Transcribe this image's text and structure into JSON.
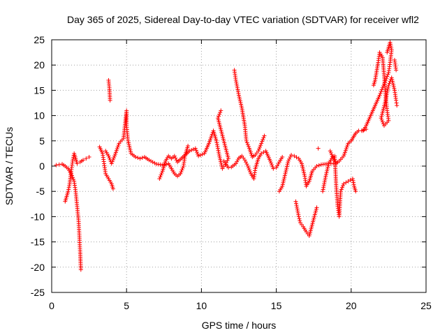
{
  "chart_data": {
    "type": "scatter",
    "title": "Day 365 of 2025, Sidereal Day-to-day VTEC variation (SDTVAR) for receiver wfl2",
    "xlabel": "GPS time / hours",
    "ylabel": "SDTVAR / TECUs",
    "xlim": [
      0,
      25
    ],
    "ylim": [
      -25,
      25
    ],
    "xticks": [
      0,
      5,
      10,
      15,
      20,
      25
    ],
    "yticks": [
      -25,
      -20,
      -15,
      -10,
      -5,
      0,
      5,
      10,
      15,
      20,
      25
    ],
    "xtick_labels": [
      "0",
      "5",
      "10",
      "15",
      "20",
      "25"
    ],
    "ytick_labels": [
      "-25",
      "-20",
      "-15",
      "-10",
      "-5",
      "0",
      "5",
      "10",
      "15",
      "20",
      "25"
    ],
    "grid": true,
    "marker": "+",
    "color": "#ff0000",
    "series": [
      {
        "name": "s1",
        "points": [
          [
            0.3,
            0.2
          ],
          [
            0.5,
            0.3
          ],
          [
            0.7,
            0.4
          ],
          [
            0.9,
            0.0
          ],
          [
            1.1,
            -0.5
          ],
          [
            1.3,
            -1.5
          ],
          [
            1.5,
            -3.0
          ],
          [
            1.6,
            -5.0
          ],
          [
            1.7,
            -8.0
          ],
          [
            1.8,
            -11.0
          ],
          [
            1.85,
            -14.0
          ],
          [
            1.9,
            -17.0
          ],
          [
            1.95,
            -20.5
          ]
        ]
      },
      {
        "name": "s2",
        "points": [
          [
            0.9,
            -7.0
          ],
          [
            1.0,
            -6.0
          ],
          [
            1.1,
            -5.0
          ],
          [
            1.2,
            -3.5
          ],
          [
            1.3,
            -1.0
          ],
          [
            1.4,
            1.0
          ],
          [
            1.5,
            2.5
          ],
          [
            1.6,
            1.5
          ],
          [
            1.7,
            0.5
          ],
          [
            1.9,
            0.8
          ],
          [
            2.1,
            1.2
          ],
          [
            2.3,
            1.5
          ],
          [
            2.5,
            1.8
          ]
        ]
      },
      {
        "name": "s3",
        "points": [
          [
            3.2,
            3.8
          ],
          [
            3.4,
            2.5
          ],
          [
            3.5,
            0.5
          ],
          [
            3.6,
            -1.5
          ],
          [
            3.8,
            -2.5
          ],
          [
            4.0,
            -3.5
          ],
          [
            4.1,
            -4.5
          ],
          [
            3.8,
            17.0
          ],
          [
            3.85,
            15.5
          ],
          [
            3.9,
            13.0
          ]
        ]
      },
      {
        "name": "s4",
        "points": [
          [
            3.6,
            3.0
          ],
          [
            3.8,
            2.0
          ],
          [
            4.0,
            0.5
          ],
          [
            4.2,
            2.0
          ],
          [
            4.5,
            4.5
          ],
          [
            4.8,
            5.5
          ],
          [
            5.0,
            11.0
          ],
          [
            5.0,
            8.0
          ],
          [
            5.1,
            5.0
          ],
          [
            5.3,
            2.5
          ],
          [
            5.6,
            1.8
          ],
          [
            5.9,
            1.5
          ],
          [
            6.2,
            1.8
          ],
          [
            6.5,
            1.2
          ],
          [
            7.0,
            0.4
          ],
          [
            7.5,
            0.2
          ],
          [
            7.8,
            0.5
          ],
          [
            8.0,
            -0.5
          ],
          [
            8.2,
            -1.5
          ],
          [
            8.4,
            -2.0
          ],
          [
            8.6,
            -1.5
          ],
          [
            8.8,
            0.0
          ],
          [
            8.9,
            2.0
          ],
          [
            9.1,
            4.0
          ]
        ]
      },
      {
        "name": "s5",
        "points": [
          [
            7.2,
            -2.5
          ],
          [
            7.4,
            -1.0
          ],
          [
            7.6,
            1.0
          ],
          [
            7.8,
            2.0
          ],
          [
            8.0,
            1.5
          ],
          [
            8.2,
            2.0
          ],
          [
            8.4,
            0.8
          ],
          [
            9.2,
            3.0
          ],
          [
            9.6,
            3.5
          ],
          [
            9.8,
            2.0
          ],
          [
            10.2,
            2.5
          ],
          [
            10.5,
            4.5
          ],
          [
            10.8,
            7.0
          ],
          [
            11.0,
            5.0
          ],
          [
            11.2,
            2.0
          ],
          [
            11.4,
            -0.5
          ],
          [
            11.6,
            0.3
          ],
          [
            11.8,
            1.5
          ],
          [
            11.1,
            9.5
          ],
          [
            11.3,
            11.0
          ]
        ]
      },
      {
        "name": "s6",
        "points": [
          [
            11.5,
            1.0
          ],
          [
            11.8,
            -0.3
          ],
          [
            12.0,
            -0.2
          ],
          [
            12.3,
            0.5
          ],
          [
            12.5,
            1.6
          ],
          [
            12.7,
            2.0
          ],
          [
            12.9,
            1.2
          ],
          [
            13.1,
            0.0
          ],
          [
            13.3,
            -1.5
          ],
          [
            13.5,
            -2.5
          ],
          [
            13.6,
            -0.5
          ],
          [
            13.8,
            1.5
          ],
          [
            14.0,
            2.5
          ],
          [
            14.3,
            3.0
          ],
          [
            14.6,
            1.0
          ],
          [
            14.8,
            -0.5
          ],
          [
            15.0,
            -0.3
          ],
          [
            15.2,
            0.8
          ],
          [
            15.4,
            1.8
          ]
        ]
      },
      {
        "name": "s7",
        "points": [
          [
            12.2,
            19.0
          ],
          [
            12.3,
            17.0
          ],
          [
            12.5,
            14.0
          ],
          [
            12.7,
            11.5
          ],
          [
            12.9,
            8.0
          ],
          [
            13.0,
            5.0
          ],
          [
            13.2,
            3.5
          ],
          [
            13.4,
            1.8
          ],
          [
            13.6,
            2.2
          ],
          [
            13.8,
            3.0
          ],
          [
            14.0,
            4.5
          ],
          [
            14.2,
            6.0
          ]
        ]
      },
      {
        "name": "s8",
        "points": [
          [
            15.2,
            -5.0
          ],
          [
            15.4,
            -4.0
          ],
          [
            15.6,
            -1.5
          ],
          [
            15.8,
            1.0
          ],
          [
            16.0,
            2.2
          ],
          [
            16.2,
            2.0
          ],
          [
            16.5,
            1.5
          ],
          [
            16.7,
            0.5
          ],
          [
            16.9,
            -2.0
          ],
          [
            17.0,
            -4.0
          ],
          [
            17.2,
            -3.0
          ],
          [
            17.4,
            -1.0
          ],
          [
            17.7,
            0.0
          ],
          [
            18.0,
            0.3
          ],
          [
            18.5,
            0.5
          ],
          [
            18.8,
            0.5
          ]
        ]
      },
      {
        "name": "s9",
        "points": [
          [
            16.3,
            -7.0
          ],
          [
            16.4,
            -8.5
          ],
          [
            16.5,
            -10.0
          ],
          [
            16.6,
            -11.2
          ],
          [
            16.8,
            -12.0
          ],
          [
            17.0,
            -13.0
          ],
          [
            17.2,
            -13.8
          ],
          [
            17.7,
            -8.2
          ],
          [
            17.8,
            3.5
          ]
        ]
      },
      {
        "name": "s10",
        "points": [
          [
            18.1,
            -5.0
          ],
          [
            18.3,
            -2.0
          ],
          [
            18.5,
            0.5
          ],
          [
            18.7,
            1.5
          ],
          [
            18.9,
            2.0
          ],
          [
            19.0,
            -4.0
          ],
          [
            19.1,
            -8.0
          ],
          [
            19.2,
            -10.0
          ],
          [
            19.3,
            -5.0
          ],
          [
            19.5,
            -3.5
          ],
          [
            19.8,
            -3.0
          ],
          [
            20.1,
            -2.5
          ],
          [
            20.2,
            -4.0
          ],
          [
            20.3,
            -5.0
          ]
        ]
      },
      {
        "name": "s11",
        "points": [
          [
            18.6,
            3.0
          ],
          [
            18.8,
            1.5
          ],
          [
            19.0,
            0.5
          ],
          [
            19.2,
            1.0
          ],
          [
            19.5,
            2.0
          ],
          [
            19.8,
            4.5
          ],
          [
            20.0,
            5.0
          ],
          [
            20.3,
            6.5
          ],
          [
            20.5,
            7.0
          ],
          [
            20.7,
            7.0
          ],
          [
            21.0,
            7.3
          ]
        ]
      },
      {
        "name": "s12",
        "points": [
          [
            20.8,
            7.0
          ],
          [
            21.0,
            8.0
          ],
          [
            21.3,
            10.0
          ],
          [
            21.6,
            12.0
          ],
          [
            21.9,
            14.0
          ],
          [
            22.1,
            15.5
          ],
          [
            22.3,
            17.0
          ],
          [
            22.5,
            18.5
          ],
          [
            22.6,
            20.5
          ],
          [
            22.7,
            23.0
          ],
          [
            22.6,
            24.5
          ],
          [
            22.4,
            22.5
          ]
        ]
      },
      {
        "name": "s13",
        "points": [
          [
            21.5,
            16.0
          ],
          [
            21.6,
            17.0
          ],
          [
            21.8,
            20.5
          ],
          [
            21.9,
            22.5
          ],
          [
            22.1,
            21.5
          ],
          [
            22.2,
            18.0
          ],
          [
            22.3,
            14.0
          ],
          [
            22.4,
            11.0
          ],
          [
            22.5,
            9.0
          ],
          [
            22.2,
            8.0
          ],
          [
            22.0,
            9.5
          ],
          [
            22.3,
            13.0
          ],
          [
            22.5,
            16.0
          ],
          [
            22.7,
            17.5
          ],
          [
            22.9,
            15.0
          ],
          [
            23.0,
            13.0
          ],
          [
            23.05,
            12.0
          ],
          [
            22.9,
            21.0
          ],
          [
            23.0,
            19.0
          ]
        ]
      }
    ]
  }
}
